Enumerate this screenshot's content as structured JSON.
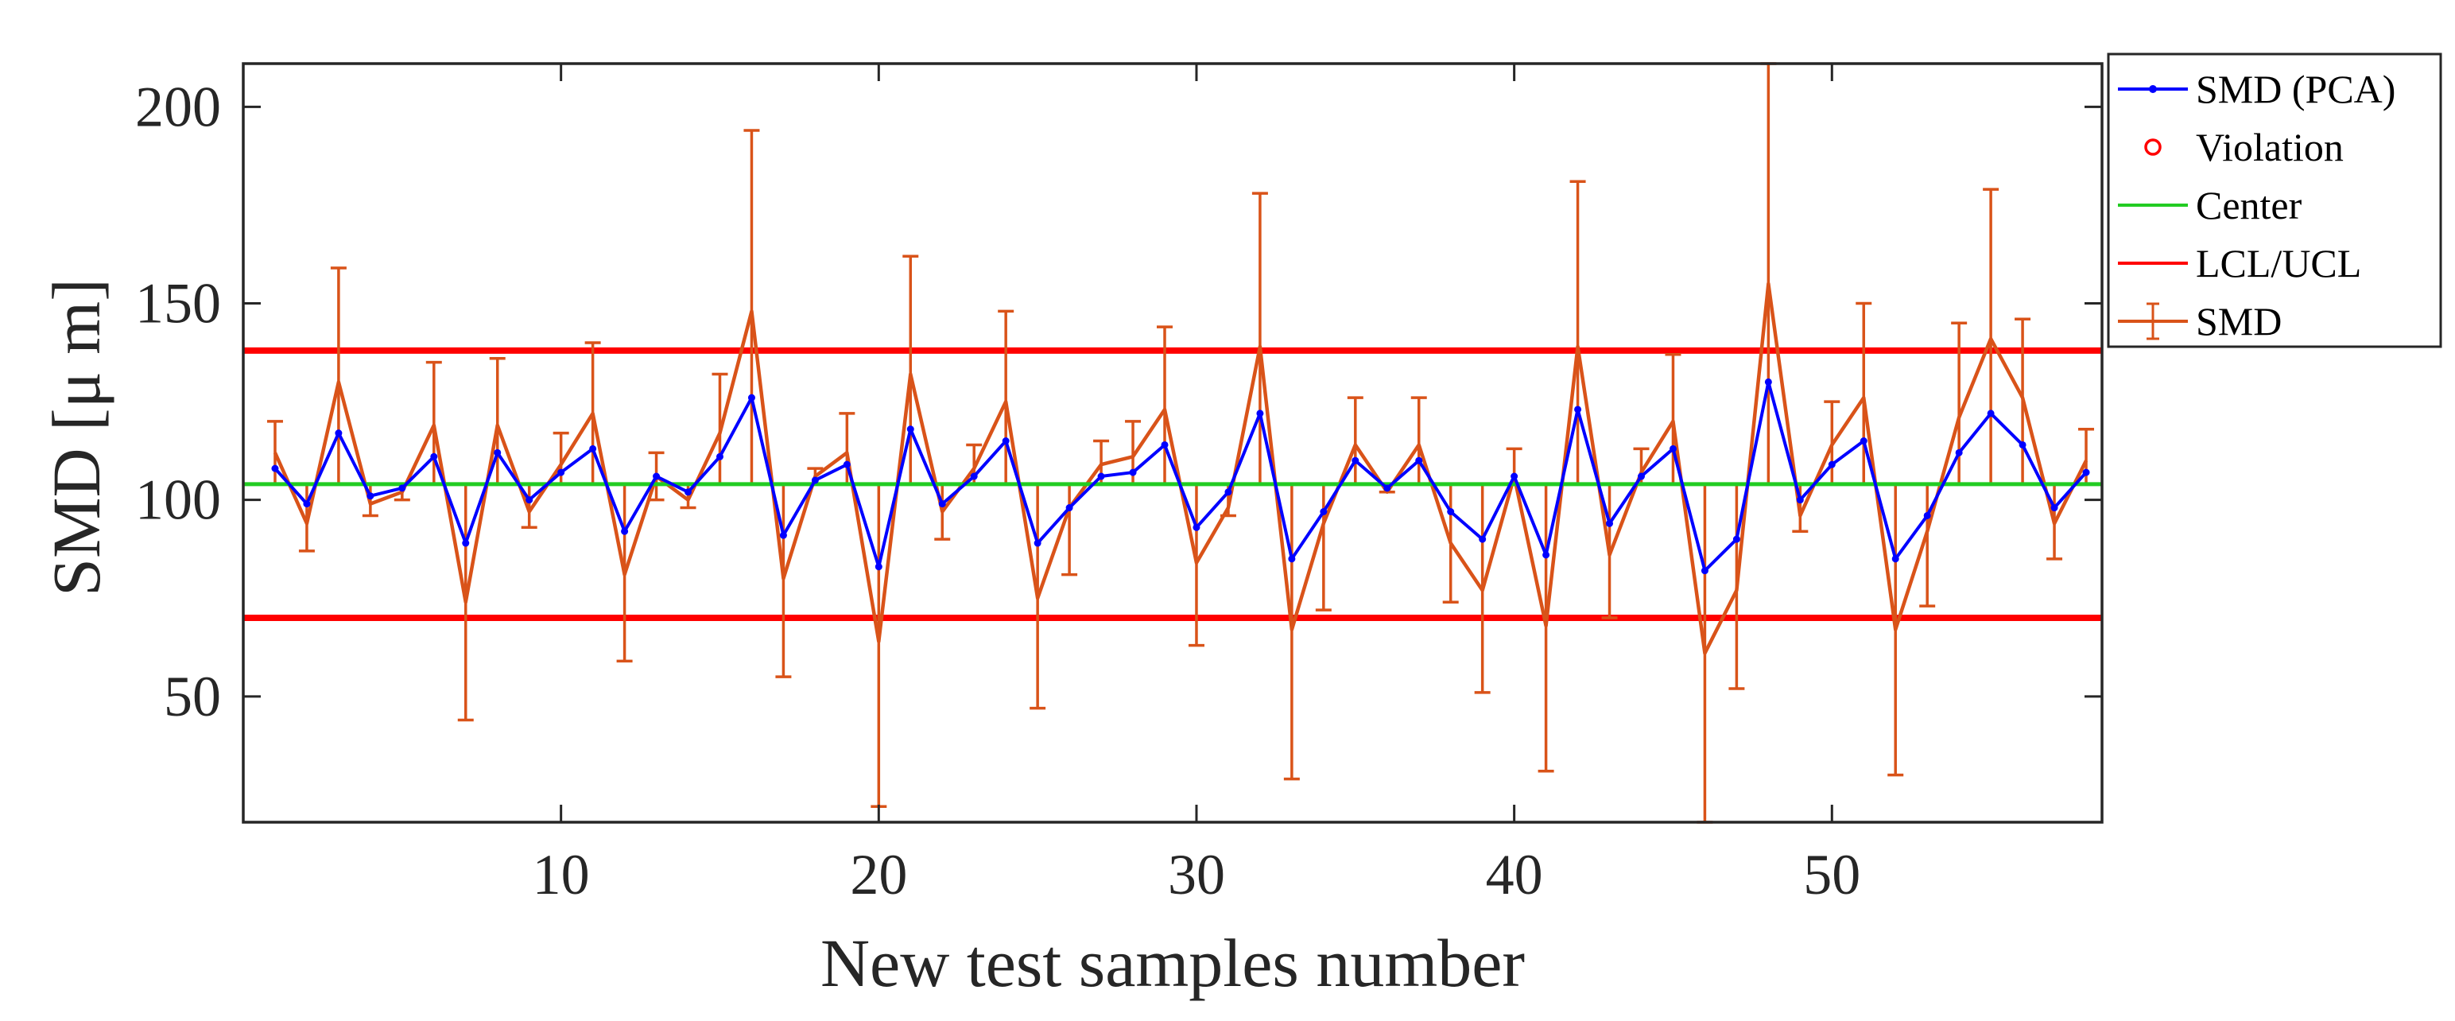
{
  "chart_data": {
    "type": "line",
    "title": "",
    "xlabel": "New test samples number",
    "ylabel": "SMD [μ m]",
    "xlim": [
      0,
      58.5
    ],
    "ylim": [
      18,
      211
    ],
    "xticks": [
      10,
      20,
      30,
      40,
      50
    ],
    "yticks": [
      50,
      100,
      150,
      200
    ],
    "legend": [
      {
        "label": "SMD (PCA)",
        "color": "#0000ff",
        "marker": "dot"
      },
      {
        "label": "Violation",
        "color": "#ff0000",
        "marker": "circle"
      },
      {
        "label": "Center",
        "color": "#22cc22",
        "marker": "line"
      },
      {
        "label": "LCL/UCL",
        "color": "#ff0000",
        "marker": "line"
      },
      {
        "label": "SMD",
        "color": "#d95319",
        "marker": "errorbar"
      }
    ],
    "legend_position": "outside-top-right",
    "center": 104,
    "lcl": 70,
    "ucl": 138,
    "series": [
      {
        "name": "SMD (PCA)",
        "x": [
          1,
          2,
          3,
          4,
          5,
          6,
          7,
          8,
          9,
          10,
          11,
          12,
          13,
          14,
          15,
          16,
          17,
          18,
          19,
          20,
          21,
          22,
          23,
          24,
          25,
          26,
          27,
          28,
          29,
          30,
          31,
          32,
          33,
          34,
          35,
          36,
          37,
          38,
          39,
          40,
          41,
          42,
          43,
          44,
          45,
          46,
          47,
          48,
          49,
          50,
          51,
          52,
          53,
          54,
          55,
          56,
          57,
          58
        ],
        "y": [
          108,
          99,
          117,
          101,
          103,
          111,
          89,
          112,
          100,
          107,
          113,
          92,
          106,
          102,
          111,
          126,
          91,
          105,
          109,
          83,
          118,
          99,
          106,
          115,
          89,
          98,
          106,
          107,
          114,
          93,
          102,
          122,
          85,
          97,
          110,
          103,
          110,
          97,
          90,
          106,
          86,
          123,
          94,
          106,
          113,
          82,
          90,
          130,
          100,
          109,
          115,
          85,
          96,
          112,
          122,
          114,
          98,
          107
        ]
      },
      {
        "name": "SMD",
        "x": [
          1,
          2,
          3,
          4,
          5,
          6,
          7,
          8,
          9,
          10,
          11,
          12,
          13,
          14,
          15,
          16,
          17,
          18,
          19,
          20,
          21,
          22,
          23,
          24,
          25,
          26,
          27,
          28,
          29,
          30,
          31,
          32,
          33,
          34,
          35,
          36,
          37,
          38,
          39,
          40,
          41,
          42,
          43,
          44,
          45,
          46,
          47,
          48,
          49,
          50,
          51,
          52,
          53,
          54,
          55,
          56,
          57,
          58
        ],
        "y": [
          112,
          94,
          130,
          99,
          102,
          119,
          74,
          119,
          97,
          109,
          122,
          81,
          106,
          100,
          117,
          148,
          80,
          106,
          112,
          64,
          132,
          97,
          108,
          125,
          75,
          98,
          109,
          111,
          123,
          84,
          98,
          139,
          67,
          94,
          114,
          102,
          114,
          89,
          77,
          106,
          68,
          139,
          86,
          107,
          120,
          61,
          77,
          155,
          96,
          114,
          126,
          67,
          92,
          121,
          141,
          126,
          94,
          110
        ],
        "err_low": [
          104,
          87,
          104,
          96,
          100,
          104,
          44,
          104,
          93,
          104,
          104,
          59,
          100,
          98,
          104,
          104,
          55,
          104,
          104,
          22,
          104,
          90,
          104,
          104,
          47,
          81,
          104,
          104,
          104,
          63,
          96,
          104,
          29,
          72,
          104,
          102,
          104,
          74,
          51,
          104,
          31,
          104,
          70,
          104,
          104,
          18,
          52,
          104,
          92,
          104,
          104,
          30,
          73,
          104,
          104,
          104,
          85,
          104
        ],
        "err_high": [
          120,
          104,
          159,
          104,
          104,
          135,
          104,
          136,
          104,
          117,
          140,
          104,
          112,
          104,
          132,
          194,
          104,
          108,
          122,
          104,
          162,
          104,
          114,
          148,
          104,
          104,
          115,
          120,
          144,
          104,
          104,
          178,
          104,
          104,
          126,
          104,
          126,
          104,
          104,
          113,
          104,
          181,
          104,
          113,
          137,
          104,
          104,
          211,
          104,
          125,
          150,
          104,
          104,
          145,
          179,
          146,
          104,
          118
        ]
      }
    ]
  }
}
